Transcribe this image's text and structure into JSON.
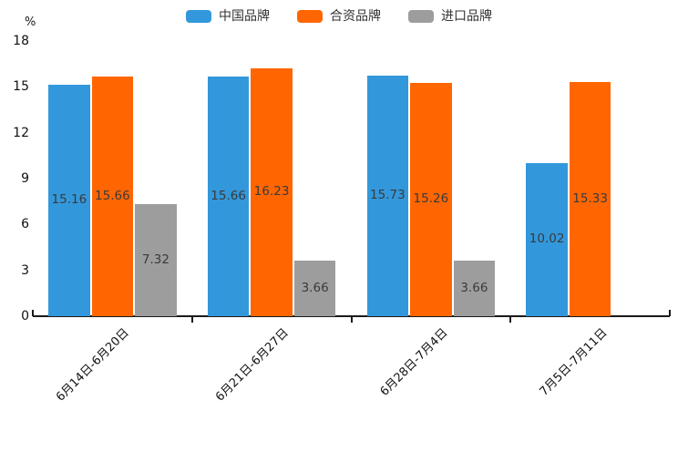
{
  "chart_data": {
    "type": "bar",
    "title": "",
    "ylabel": "%",
    "ylim": [
      0,
      18
    ],
    "yticks": [
      0,
      3,
      6,
      9,
      12,
      15,
      18
    ],
    "grid": false,
    "legend_position": "top-center",
    "value_labels": true,
    "value_label_decimals": 2,
    "categories": [
      "6月14日-6月20日",
      "6月21日-6月27日",
      "6月28日-7月4日",
      "7月5日-7月11日"
    ],
    "series": [
      {
        "name": "中国品牌",
        "color": "#3398DB",
        "values": [
          15.16,
          15.66,
          15.73,
          10.02
        ]
      },
      {
        "name": "合资品牌",
        "color": "#FF6602",
        "values": [
          15.66,
          16.23,
          15.26,
          15.33
        ]
      },
      {
        "name": "进口品牌",
        "color": "#9D9D9D",
        "values": [
          7.32,
          3.66,
          3.66,
          null
        ]
      }
    ],
    "colors": {
      "axis_line": "#1a1a1a",
      "axis_text": "#111111",
      "bar_value_text": "#3a3a3a",
      "legend_text": "#333333",
      "background": "#ffffff"
    }
  }
}
